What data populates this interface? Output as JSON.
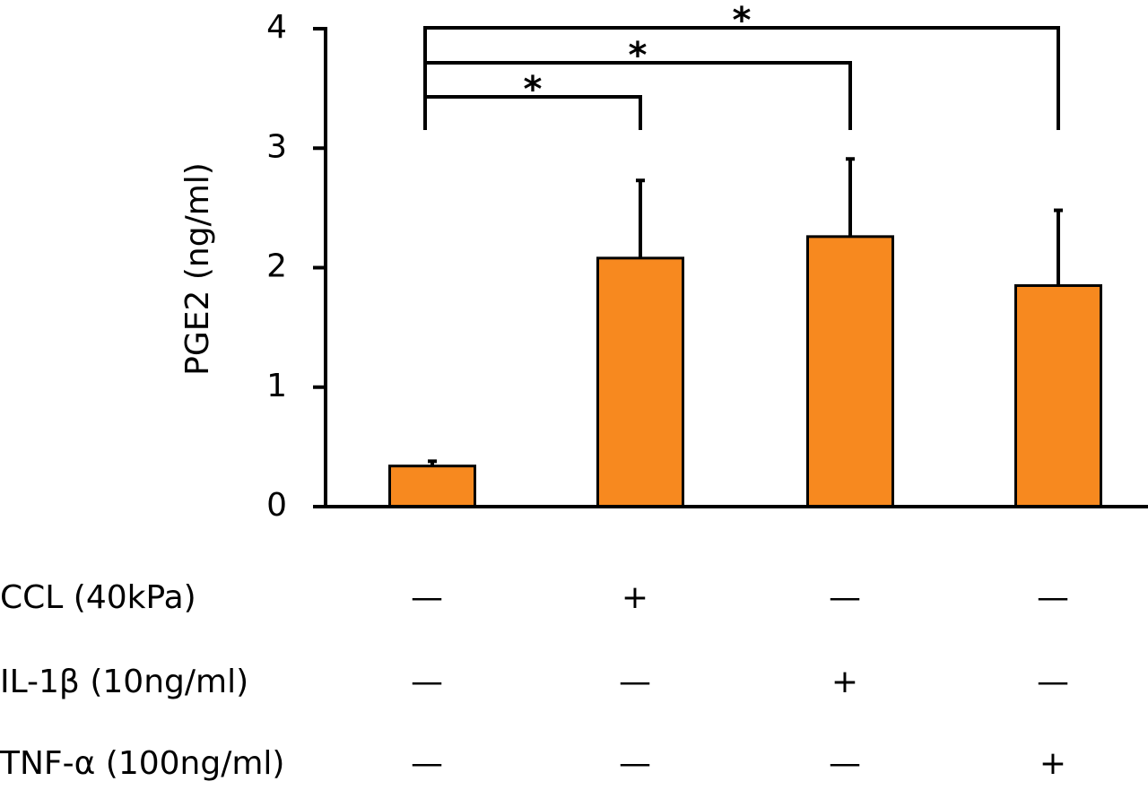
{
  "chart_data": {
    "type": "bar",
    "y_label": "PGE2 (ng/ml)",
    "categories": [
      null,
      null,
      null,
      null
    ],
    "values": [
      0.34,
      2.08,
      2.26,
      1.85
    ],
    "errors": [
      0.04,
      0.65,
      0.65,
      0.63
    ],
    "color": "#f7891f",
    "ylim": [
      0,
      4
    ],
    "yticks": [
      0,
      1,
      2,
      3,
      4
    ],
    "annotations": [
      {
        "text": "*",
        "from": 0,
        "to": 1
      },
      {
        "text": "*",
        "from": 0,
        "to": 2
      },
      {
        "text": "*",
        "from": 0,
        "to": 3
      }
    ],
    "treatments": [
      {
        "label": "CCL (40kPa)",
        "values": [
          "—",
          "+",
          "—",
          "—"
        ]
      },
      {
        "label": "IL-1β (10ng/ml)",
        "values": [
          "—",
          "—",
          "+",
          "—"
        ]
      },
      {
        "label": "TNF-α (100ng/ml)",
        "values": [
          "—",
          "—",
          "—",
          "+"
        ]
      }
    ]
  }
}
